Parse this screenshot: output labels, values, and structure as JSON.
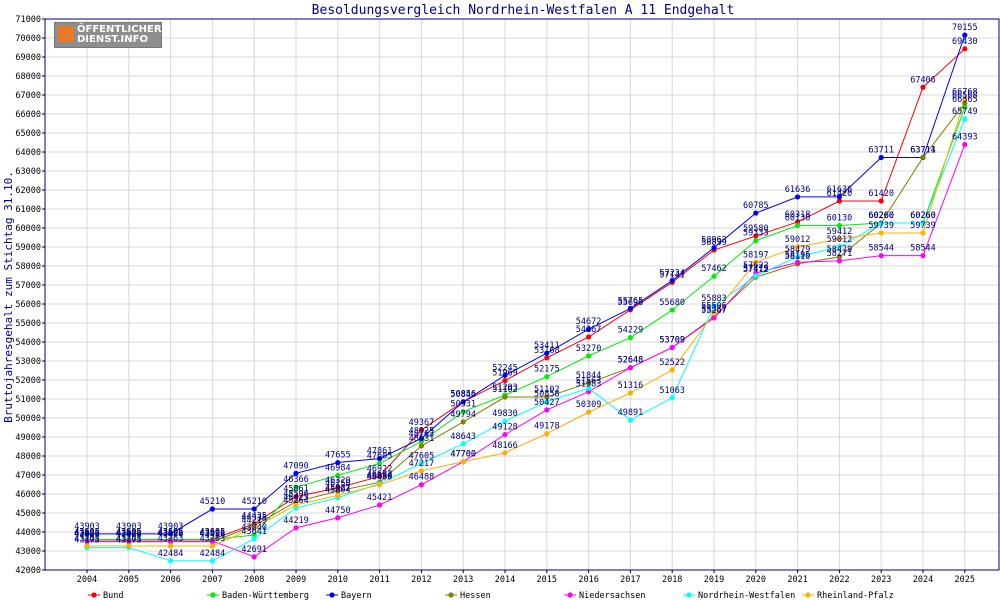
{
  "logo": {
    "line1": "ÖFFENTLICHER",
    "line2": "DIENST.INFO"
  },
  "colors": {
    "title": "#00008b",
    "frame": "#00008b",
    "grid": "#d8d8d8"
  },
  "chart_data": {
    "type": "line",
    "title": "Besoldungsvergleich Nordrhein-Westfalen A 11 Endgehalt",
    "xlabel": "",
    "ylabel": "Bruttojahresgehalt zum Stichtag 31.10.",
    "ylim": [
      42000,
      71000
    ],
    "ytick_step": 1000,
    "grid": true,
    "legend_position": "bottom",
    "categories": [
      "2004",
      "2005",
      "2006",
      "2007",
      "2008",
      "2009",
      "2010",
      "2011",
      "2012",
      "2013",
      "2014",
      "2015",
      "2016",
      "2017",
      "2018",
      "2019",
      "2020",
      "2021",
      "2022",
      "2023",
      "2024",
      "2025"
    ],
    "series": [
      {
        "name": "Bund",
        "color": "#ff0000",
        "values": [
          43605,
          43605,
          43605,
          43605,
          44435,
          45861,
          46320,
          46922,
          49367,
          50856,
          51969,
          53168,
          54267,
          55696,
          57141,
          58839,
          59580,
          60318,
          61420,
          61420,
          67406,
          69430
        ]
      },
      {
        "name": "Baden-Württemberg",
        "color": "#00ee00",
        "values": [
          43605,
          43605,
          43605,
          43605,
          43840,
          46366,
          46984,
          47605,
          48763,
          50331,
          51203,
          52175,
          53270,
          54229,
          55680,
          57462,
          59333,
          60130,
          60130,
          60260,
          60260,
          66365
        ]
      },
      {
        "name": "Bayern",
        "color": "#0000ff",
        "values": [
          43903,
          43903,
          43903,
          45210,
          45210,
          47090,
          47655,
          47861,
          48925,
          50846,
          52245,
          53411,
          54672,
          55765,
          57234,
          58963,
          60785,
          61636,
          61636,
          63711,
          63711,
          70155
        ]
      },
      {
        "name": "Hessen",
        "color": "#808000",
        "values": [
          43488,
          43488,
          43488,
          43488,
          44335,
          45596,
          46150,
          46622,
          48531,
          49794,
          51102,
          51102,
          51844,
          52648,
          53709,
          55337,
          57412,
          58110,
          58479,
          60260,
          63714,
          66568
        ]
      },
      {
        "name": "Niedersachsen",
        "color": "#ff00ff",
        "values": [
          43526,
          43526,
          43526,
          43526,
          42691,
          44219,
          44750,
          45421,
          46488,
          47700,
          49128,
          50427,
          51383,
          52648,
          53709,
          55267,
          57622,
          58195,
          58271,
          58544,
          58544,
          64393
        ]
      },
      {
        "name": "Nordrhein-Westfalen",
        "color": "#00ffff",
        "values": [
          43175,
          43175,
          42484,
          42484,
          43641,
          45264,
          45804,
          46550,
          47605,
          48643,
          49830,
          50856,
          51563,
          49891,
          51063,
          55883,
          57479,
          58479,
          59012,
          60260,
          60260,
          65749
        ]
      },
      {
        "name": "Rheinland-Pfalz",
        "color": "#ffb000",
        "values": [
          43263,
          43263,
          43263,
          43263,
          44219,
          45425,
          45927,
          46488,
          47217,
          47700,
          48166,
          49178,
          50309,
          51316,
          52522,
          55506,
          58197,
          59012,
          59412,
          59739,
          59739,
          66768
        ]
      }
    ],
    "label_series_order": [
      "Niedersachsen",
      "Nordrhein-Westfalen",
      "Rheinland-Pfalz",
      "Hessen",
      "Baden-Württemberg",
      "Bund",
      "Bayern"
    ]
  }
}
